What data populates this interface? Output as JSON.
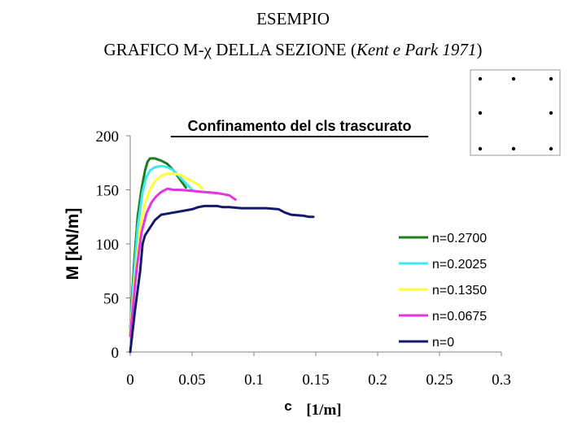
{
  "slide": {
    "line1": "ESEMPIO",
    "line2_pre": "GRAFICO M-",
    "line2_chi": "χ",
    "line2_mid": " DELLA SEZIONE (",
    "line2_italic": "Kent e Park 1971",
    "line2_post": ")"
  },
  "section_diagram": {
    "description_hidden": "",
    "rows": [
      [
        true,
        true,
        true
      ],
      [
        true,
        false,
        true
      ],
      [
        true,
        true,
        true
      ]
    ],
    "border_color": "#999999",
    "dot_color": "#000000"
  },
  "chart_data": {
    "type": "line",
    "title": "Confinamento del cls trascurato",
    "xlabel_symbol": "c",
    "xlabel_unit": "[1/m]",
    "ylabel": "M [kN/m]",
    "xlim": [
      0,
      0.3
    ],
    "ylim": [
      0,
      200
    ],
    "xticks": [
      0,
      0.05,
      0.1,
      0.15,
      0.2,
      0.25,
      0.3
    ],
    "xtick_labels": [
      "0",
      "0.05",
      "0.1",
      "0.15",
      "0.2",
      "0.25",
      "0.3"
    ],
    "yticks": [
      0,
      50,
      100,
      150,
      200
    ],
    "ytick_labels": [
      "0",
      "50",
      "100",
      "150",
      "200"
    ],
    "grid": false,
    "legend_position": "right",
    "series": [
      {
        "name": "n=0.2700",
        "color": "#1e7e1e",
        "points": [
          [
            0,
            22
          ],
          [
            0.003,
            80
          ],
          [
            0.006,
            125
          ],
          [
            0.009,
            150
          ],
          [
            0.012,
            168
          ],
          [
            0.014,
            176
          ],
          [
            0.016,
            179
          ],
          [
            0.02,
            179
          ],
          [
            0.025,
            177
          ],
          [
            0.03,
            174
          ],
          [
            0.035,
            168
          ],
          [
            0.04,
            160
          ],
          [
            0.045,
            152
          ]
        ]
      },
      {
        "name": "n=0.2025",
        "color": "#40e8f0",
        "points": [
          [
            0,
            20
          ],
          [
            0.003,
            70
          ],
          [
            0.006,
            115
          ],
          [
            0.01,
            148
          ],
          [
            0.013,
            162
          ],
          [
            0.016,
            168
          ],
          [
            0.02,
            171
          ],
          [
            0.025,
            172
          ],
          [
            0.03,
            171
          ],
          [
            0.035,
            168
          ],
          [
            0.04,
            162
          ],
          [
            0.045,
            156
          ],
          [
            0.05,
            150
          ]
        ]
      },
      {
        "name": "n=0.1350",
        "color": "#ffff3a",
        "points": [
          [
            0,
            18
          ],
          [
            0.004,
            70
          ],
          [
            0.008,
            115
          ],
          [
            0.012,
            138
          ],
          [
            0.016,
            150
          ],
          [
            0.02,
            158
          ],
          [
            0.025,
            163
          ],
          [
            0.03,
            165
          ],
          [
            0.035,
            165
          ],
          [
            0.04,
            164
          ],
          [
            0.045,
            161
          ],
          [
            0.05,
            158
          ],
          [
            0.055,
            155
          ],
          [
            0.058,
            151
          ]
        ]
      },
      {
        "name": "n=0.0675",
        "color": "#e632e6",
        "points": [
          [
            0,
            15
          ],
          [
            0.005,
            75
          ],
          [
            0.009,
            110
          ],
          [
            0.013,
            128
          ],
          [
            0.017,
            138
          ],
          [
            0.021,
            144
          ],
          [
            0.025,
            148
          ],
          [
            0.03,
            151
          ],
          [
            0.035,
            150
          ],
          [
            0.04,
            150
          ],
          [
            0.05,
            149
          ],
          [
            0.06,
            148
          ],
          [
            0.07,
            147
          ],
          [
            0.075,
            146
          ],
          [
            0.08,
            145
          ],
          [
            0.085,
            141
          ]
        ]
      },
      {
        "name": "n=0",
        "color": "#14196e",
        "points": [
          [
            0,
            0
          ],
          [
            0.004,
            40
          ],
          [
            0.008,
            75
          ],
          [
            0.01,
            100
          ],
          [
            0.012,
            108
          ],
          [
            0.016,
            115
          ],
          [
            0.02,
            122
          ],
          [
            0.025,
            127
          ],
          [
            0.03,
            128
          ],
          [
            0.04,
            130
          ],
          [
            0.05,
            132
          ],
          [
            0.055,
            134
          ],
          [
            0.06,
            135
          ],
          [
            0.065,
            135
          ],
          [
            0.07,
            135
          ],
          [
            0.075,
            134
          ],
          [
            0.08,
            134
          ],
          [
            0.09,
            133
          ],
          [
            0.1,
            133
          ],
          [
            0.11,
            133
          ],
          [
            0.12,
            132
          ],
          [
            0.125,
            129
          ],
          [
            0.13,
            127
          ],
          [
            0.14,
            126
          ],
          [
            0.145,
            125
          ],
          [
            0.148,
            125
          ]
        ]
      }
    ]
  }
}
